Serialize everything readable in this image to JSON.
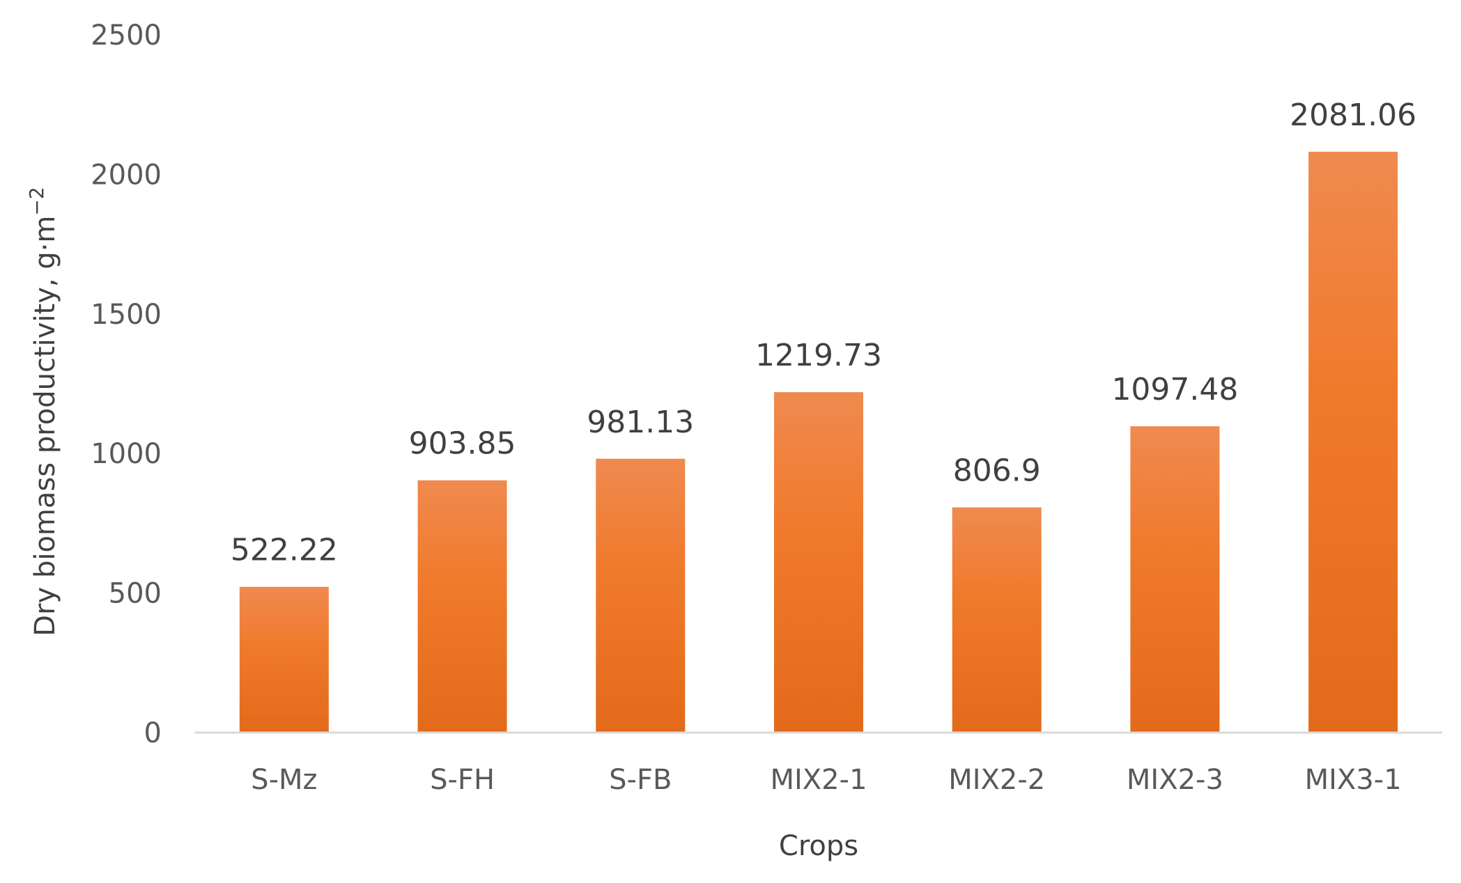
{
  "chart_data": {
    "type": "bar",
    "title": "",
    "xlabel": "Crops",
    "ylabel": "Dry biomass productivity, g·m",
    "ylabel_superscript": "−2",
    "categories": [
      "S-Mz",
      "S-FH",
      "S-FB",
      "MIX2-1",
      "MIX2-2",
      "MIX2-3",
      "MIX3-1"
    ],
    "values": [
      522.22,
      903.85,
      981.13,
      1219.73,
      806.9,
      1097.48,
      2081.06
    ],
    "data_labels": [
      "522.22",
      "903.85",
      "981.13",
      "1219.73",
      "806.9",
      "1097.48",
      "2081.06"
    ],
    "ylim": [
      0,
      2500
    ],
    "yticks": [
      "0",
      "500",
      "1000",
      "1500",
      "2000",
      "2500"
    ],
    "grid": false,
    "legend": "none",
    "bar_color_top": "#ef8a4f",
    "bar_color_mid": "#f07a2c",
    "bar_color_bottom": "#e36a1a"
  }
}
